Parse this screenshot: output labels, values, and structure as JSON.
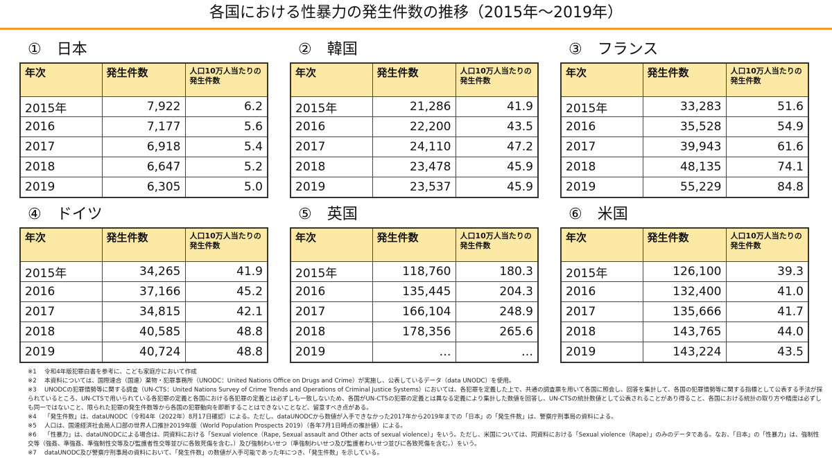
{
  "title": "各国における性暴力の発生件数の推移（2015年～2019年）",
  "colors": {
    "accent": "#f39c28",
    "header_bg": "#fde9a6"
  },
  "columns": {
    "year": "年次",
    "count": "発生件数",
    "rate": "人口10万人当たりの発生件数"
  },
  "panels": [
    {
      "heading": "①　日本",
      "rows": [
        {
          "year": "2015年",
          "count": "7,922",
          "rate": "6.2"
        },
        {
          "year": "2016",
          "count": "7,177",
          "rate": "5.6"
        },
        {
          "year": "2017",
          "count": "6,918",
          "rate": "5.4"
        },
        {
          "year": "2018",
          "count": "6,647",
          "rate": "5.2"
        },
        {
          "year": "2019",
          "count": "6,305",
          "rate": "5.0"
        }
      ]
    },
    {
      "heading": "②　韓国",
      "rows": [
        {
          "year": "2015年",
          "count": "21,286",
          "rate": "41.9"
        },
        {
          "year": "2016",
          "count": "22,200",
          "rate": "43.5"
        },
        {
          "year": "2017",
          "count": "24,110",
          "rate": "47.2"
        },
        {
          "year": "2018",
          "count": "23,478",
          "rate": "45.9"
        },
        {
          "year": "2019",
          "count": "23,537",
          "rate": "45.9"
        }
      ]
    },
    {
      "heading": "③　フランス",
      "rows": [
        {
          "year": "2015年",
          "count": "33,283",
          "rate": "51.6"
        },
        {
          "year": "2016",
          "count": "35,528",
          "rate": "54.9"
        },
        {
          "year": "2017",
          "count": "39,943",
          "rate": "61.6"
        },
        {
          "year": "2018",
          "count": "48,135",
          "rate": "74.1"
        },
        {
          "year": "2019",
          "count": "55,229",
          "rate": "84.8"
        }
      ]
    },
    {
      "heading": "④　ドイツ",
      "rows": [
        {
          "year": "2015年",
          "count": "34,265",
          "rate": "41.9"
        },
        {
          "year": "2016",
          "count": "37,166",
          "rate": "45.2"
        },
        {
          "year": "2017",
          "count": "34,815",
          "rate": "42.1"
        },
        {
          "year": "2018",
          "count": "40,585",
          "rate": "48.8"
        },
        {
          "year": "2019",
          "count": "40,724",
          "rate": "48.8"
        }
      ]
    },
    {
      "heading": "⑤　英国",
      "rows": [
        {
          "year": "2015年",
          "count": "118,760",
          "rate": "180.3"
        },
        {
          "year": "2016",
          "count": "135,445",
          "rate": "204.3"
        },
        {
          "year": "2017",
          "count": "166,104",
          "rate": "248.9"
        },
        {
          "year": "2018",
          "count": "178,356",
          "rate": "265.6"
        },
        {
          "year": "2019",
          "count": "…",
          "rate": "…"
        }
      ]
    },
    {
      "heading": "⑥　米国",
      "rows": [
        {
          "year": "2015年",
          "count": "126,100",
          "rate": "39.3"
        },
        {
          "year": "2016",
          "count": "132,400",
          "rate": "41.0"
        },
        {
          "year": "2017",
          "count": "135,666",
          "rate": "41.7"
        },
        {
          "year": "2018",
          "count": "143,765",
          "rate": "44.0"
        },
        {
          "year": "2019",
          "count": "143,224",
          "rate": "43.5"
        }
      ]
    }
  ],
  "notes": [
    {
      "mark": "※1",
      "text": "令和4年版犯罪白書を参考に、こども家庭庁において作成"
    },
    {
      "mark": "※2",
      "text": "本資料については、国際連合（国連）薬物・犯罪事務所（UNODC：United Nations Office on Drugs and Crime）が実施し、公表しているデータ（data UNODC）を使用。"
    },
    {
      "mark": "※3",
      "text": "UNODCの犯罪情勢等に関する調査（UN-CTS：United Nations Survey of Crime Trends and Operations of Criminal Justice Systems）においては、各犯罪を定義した上で、共通の調査票を用いて各国に照会し、回答を集計して、各国の犯罪情勢等に関する指標として公表する手法が採られているところ、UN-CTSで用いられている各犯罪の定義と各国における各犯罪の定義とは必ずしも一致しないため、各国がUN-CTSの犯罪の定義とは異なる定義により集計した数値を回答し、UN-CTSの統計数値として公表されることがあり得ること、各国における統計の取り方や精度は必ずしも同一ではないこと、限られた犯罪の発生件数等から各国の犯罪動向を即断することはできないことなど、留意すべき点がある。"
    },
    {
      "mark": "※4",
      "text": "「発生件数」は、dataUNODC（令和4年（2022年）8月17日確認）による。ただし、dataUNODCから数値が入手できなかった2017年から2019年までの「日本」の「発生件数」は、警察庁刑事局の資料による。"
    },
    {
      "mark": "※5",
      "text": "人口は、国連経済社会局人口部の世界人口推計2019年版（World Population Prospects 2019）（各年7月1日時点の推計値）による。"
    },
    {
      "mark": "※6",
      "text": "「性暴力」は、dataUNODCによる場合は、同資料における「Sexual violence（Rape, Sexual assault and Other acts of sexual violence）」をいう。ただし、米国については、同資料における「Sexual violence（Rape）」のみのデータである。なお、「日本」の「性暴力」は、強制性交等（強姦、準強姦、準強制性交等及び監護者性交等並びに各致死傷を含む。）及び強制わいせつ（準強制わいせつ及び監護者わいせつ並びに各致死傷を含む。）をいう。"
    },
    {
      "mark": "※7",
      "text": "dataUNODC及び警察庁刑事局の資料において、「発生件数」の数値が入手可能であった年につき、「発生件数」を示している。"
    }
  ]
}
